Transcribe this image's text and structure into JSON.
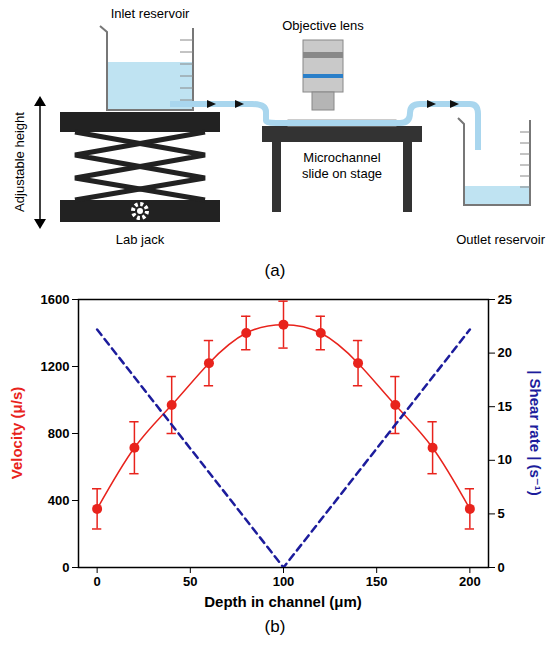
{
  "diagram": {
    "inlet": "Inlet reservoir",
    "height": "Adjustable height",
    "jack": "Lab jack",
    "objective": "Objective lens",
    "stage": "Microchannel slide on stage",
    "outlet": "Outlet reservoir",
    "caption": "(a)"
  },
  "chart_data": {
    "type": "line",
    "caption": "(b)",
    "x_label": "Depth in channel (μm)",
    "y_label": "Velocity (μ/s)",
    "y2_label": "| Shear rate | (s⁻¹)",
    "xlim": [
      -10,
      210
    ],
    "xticks": [
      0,
      50,
      100,
      150,
      200
    ],
    "ylim": [
      0,
      1600
    ],
    "yticks": [
      0,
      400,
      800,
      1200,
      1600
    ],
    "y2lim": [
      0,
      25
    ],
    "y2ticks": [
      0,
      5,
      10,
      15,
      20,
      25
    ],
    "grid": false,
    "series": [
      {
        "color": "#e8231c",
        "marker": "circle",
        "line_style": "solid",
        "x": [
          0,
          20,
          40,
          60,
          80,
          100,
          120,
          140,
          160,
          180,
          200
        ],
        "values": [
          350,
          715,
          970,
          1220,
          1400,
          1450,
          1400,
          1220,
          970,
          715,
          350
        ],
        "errors": [
          120,
          155,
          170,
          135,
          100,
          140,
          100,
          135,
          170,
          155,
          120
        ]
      },
      {
        "color": "#1c1c9c",
        "line_style": "dashed",
        "axis": "y2",
        "x": [
          0,
          100,
          200
        ],
        "values": [
          22.2,
          0,
          22.2
        ]
      }
    ]
  }
}
